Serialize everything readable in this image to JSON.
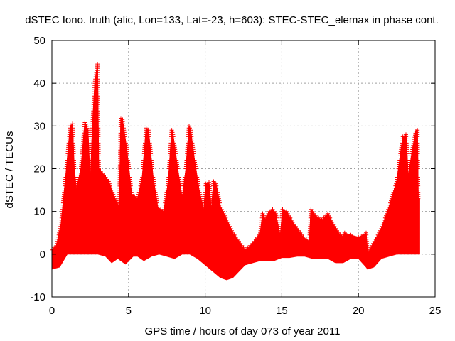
{
  "chart_data": {
    "type": "area",
    "title": "dSTEC Iono. truth (alic, Lon=133, Lat=-23, h=603): STEC-STEC_elemax in phase cont.",
    "xlabel": "GPS time / hours of day 073 of year 2011",
    "ylabel": "dSTEC  / TECUs",
    "xlim": [
      0,
      25
    ],
    "ylim": [
      -10,
      50
    ],
    "x_ticks": [
      0,
      5,
      10,
      15,
      20,
      25
    ],
    "y_ticks": [
      -10,
      0,
      10,
      20,
      30,
      40,
      50
    ],
    "grid": true,
    "series_color": "#ff0000",
    "marker": "plus",
    "series": [
      {
        "upper": [
          [
            0,
            1
          ],
          [
            0.3,
            2
          ],
          [
            0.6,
            7
          ],
          [
            0.9,
            18
          ],
          [
            1.2,
            30
          ],
          [
            1.35,
            30.5
          ],
          [
            1.45,
            20
          ],
          [
            1.6,
            15
          ],
          [
            1.9,
            20
          ],
          [
            2.15,
            30.8
          ],
          [
            2.35,
            29
          ],
          [
            2.5,
            16
          ],
          [
            2.65,
            30
          ],
          [
            2.8,
            40
          ],
          [
            2.98,
            44.5
          ],
          [
            3.05,
            20
          ],
          [
            3.3,
            19
          ],
          [
            3.7,
            17
          ],
          [
            4.1,
            13
          ],
          [
            4.4,
            11
          ],
          [
            4.5,
            31.8
          ],
          [
            4.6,
            31.5
          ],
          [
            4.9,
            24
          ],
          [
            5.2,
            14
          ],
          [
            5.6,
            13
          ],
          [
            5.9,
            18
          ],
          [
            6.15,
            29.5
          ],
          [
            6.3,
            29
          ],
          [
            6.6,
            18
          ],
          [
            6.9,
            11
          ],
          [
            7.3,
            10
          ],
          [
            7.6,
            17
          ],
          [
            7.82,
            29
          ],
          [
            7.9,
            28
          ],
          [
            8.2,
            20
          ],
          [
            8.5,
            13
          ],
          [
            8.75,
            20
          ],
          [
            8.95,
            30
          ],
          [
            9.05,
            29
          ],
          [
            9.3,
            22
          ],
          [
            9.6,
            15
          ],
          [
            9.9,
            10
          ],
          [
            10.05,
            16.5
          ],
          [
            10.25,
            16.8
          ],
          [
            10.4,
            10
          ],
          [
            10.55,
            17
          ],
          [
            10.7,
            16.5
          ],
          [
            11.0,
            11
          ],
          [
            11.4,
            8
          ],
          [
            11.8,
            5
          ],
          [
            12.2,
            3
          ],
          [
            12.6,
            1
          ],
          [
            13.1,
            2.5
          ],
          [
            13.6,
            5
          ],
          [
            13.75,
            9.5
          ],
          [
            13.9,
            8
          ],
          [
            14.2,
            10
          ],
          [
            14.4,
            10.5
          ],
          [
            14.6,
            9.5
          ],
          [
            14.9,
            4
          ],
          [
            15.05,
            10.5
          ],
          [
            15.3,
            10
          ],
          [
            15.8,
            7
          ],
          [
            16.4,
            4
          ],
          [
            16.8,
            3
          ],
          [
            16.9,
            10.5
          ],
          [
            17.2,
            9
          ],
          [
            17.6,
            8
          ],
          [
            18.0,
            9.5
          ],
          [
            18.5,
            6
          ],
          [
            18.9,
            4
          ],
          [
            19.1,
            5
          ],
          [
            19.5,
            4.5
          ],
          [
            20.0,
            4
          ],
          [
            20.3,
            4.5
          ],
          [
            20.5,
            5
          ],
          [
            20.6,
            0
          ],
          [
            20.9,
            2
          ],
          [
            21.5,
            6
          ],
          [
            22.0,
            11
          ],
          [
            22.5,
            17
          ],
          [
            22.9,
            27.5
          ],
          [
            23.1,
            28
          ],
          [
            23.25,
            18
          ],
          [
            23.5,
            24
          ],
          [
            23.75,
            28.8
          ],
          [
            23.85,
            29
          ],
          [
            23.9,
            13
          ],
          [
            24.0,
            13
          ]
        ],
        "lower": [
          [
            0,
            -3.5
          ],
          [
            0.5,
            -3
          ],
          [
            1.0,
            0
          ],
          [
            1.5,
            0
          ],
          [
            2.0,
            0
          ],
          [
            2.5,
            0
          ],
          [
            3.0,
            0
          ],
          [
            3.5,
            -0.5
          ],
          [
            3.9,
            -2
          ],
          [
            4.3,
            -1
          ],
          [
            4.8,
            -2.3
          ],
          [
            5.3,
            -0.5
          ],
          [
            5.6,
            -0.5
          ],
          [
            6.0,
            -1.5
          ],
          [
            6.5,
            -0.5
          ],
          [
            7.0,
            0
          ],
          [
            7.5,
            -0.5
          ],
          [
            8.0,
            -1
          ],
          [
            8.5,
            0
          ],
          [
            9.0,
            0
          ],
          [
            9.5,
            -1
          ],
          [
            10.0,
            -2.5
          ],
          [
            10.5,
            -4
          ],
          [
            11.0,
            -5.5
          ],
          [
            11.4,
            -6
          ],
          [
            11.8,
            -5.5
          ],
          [
            12.2,
            -4
          ],
          [
            12.6,
            -2.5
          ],
          [
            13.1,
            -2
          ],
          [
            13.6,
            -1.5
          ],
          [
            14.0,
            -1.5
          ],
          [
            14.5,
            -1.5
          ],
          [
            15.0,
            -0.8
          ],
          [
            15.5,
            -0.8
          ],
          [
            16.0,
            -0.5
          ],
          [
            16.5,
            -0.5
          ],
          [
            17.0,
            -1
          ],
          [
            17.5,
            -1
          ],
          [
            18.0,
            -1
          ],
          [
            18.5,
            -2
          ],
          [
            19.0,
            -2
          ],
          [
            19.5,
            -1
          ],
          [
            20.0,
            -1
          ],
          [
            20.5,
            -3
          ],
          [
            20.6,
            -3.5
          ],
          [
            21.0,
            -3
          ],
          [
            21.5,
            -1
          ],
          [
            22.0,
            -0.5
          ],
          [
            22.5,
            0
          ],
          [
            23.0,
            0
          ],
          [
            23.5,
            0
          ],
          [
            24.0,
            0
          ]
        ]
      }
    ]
  }
}
